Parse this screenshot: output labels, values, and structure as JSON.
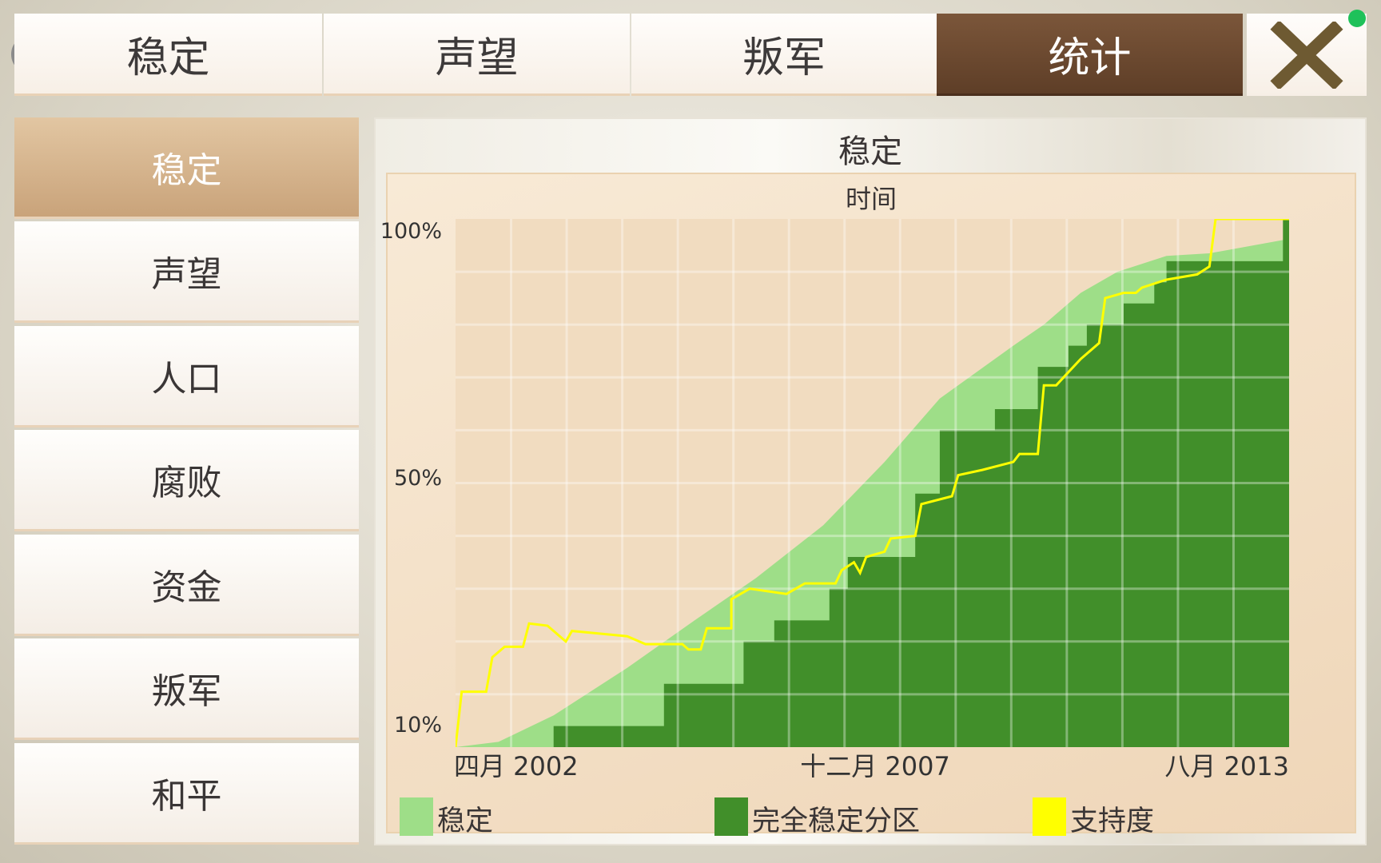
{
  "top_tabs": [
    {
      "label": "稳定"
    },
    {
      "label": "声望"
    },
    {
      "label": "叛军"
    },
    {
      "label": "统计",
      "active": true
    }
  ],
  "icons": {
    "menu": "circle-icon",
    "close": "close-x-icon",
    "mic": "mic-indicator-icon"
  },
  "sidebar": {
    "items": [
      {
        "label": "稳定",
        "active": true
      },
      {
        "label": "声望"
      },
      {
        "label": "人口"
      },
      {
        "label": "腐败"
      },
      {
        "label": "资金"
      },
      {
        "label": "叛军"
      },
      {
        "label": "和平"
      }
    ]
  },
  "colors": {
    "active_tab": "#6b4630",
    "close": "#6e5a32",
    "stable": "#9ede88",
    "fully_stable": "#418f2a",
    "support": "#ffff00",
    "plot_bg": "#f1dcc0"
  },
  "chart_data": {
    "type": "area",
    "title": "稳定",
    "xlabel": "时间",
    "xlim": [
      "2002-04",
      "2013-08"
    ],
    "xticks": [
      "四月 2002",
      "十二月 2007",
      "八月 2013"
    ],
    "ylim": [
      0,
      100
    ],
    "yticks": [
      "100%",
      "50%",
      "10%"
    ],
    "grid": true,
    "legend_placement": "bottom",
    "series": [
      {
        "name": "稳定",
        "color": "#9ede88",
        "points": [
          [
            "2002-04",
            0
          ],
          [
            "2002-11",
            1
          ],
          [
            "2003-08",
            6
          ],
          [
            "2004-08",
            15
          ],
          [
            "2005-07",
            24
          ],
          [
            "2006-05",
            32
          ],
          [
            "2007-04",
            42
          ],
          [
            "2008-02",
            54
          ],
          [
            "2008-11",
            66
          ],
          [
            "2009-11",
            76
          ],
          [
            "2010-04",
            80
          ],
          [
            "2010-10",
            86
          ],
          [
            "2011-04",
            90
          ],
          [
            "2011-12",
            93
          ],
          [
            "2012-07",
            93.5
          ],
          [
            "2013-07",
            96
          ],
          [
            "2013-08",
            100
          ]
        ]
      },
      {
        "name": "完全稳定分区",
        "color": "#418f2a",
        "step": true,
        "points": [
          [
            "2002-04",
            0
          ],
          [
            "2003-08",
            4
          ],
          [
            "2005-02",
            12
          ],
          [
            "2006-03",
            20
          ],
          [
            "2006-08",
            24
          ],
          [
            "2007-05",
            30
          ],
          [
            "2007-08",
            36
          ],
          [
            "2008-07",
            48
          ],
          [
            "2008-11",
            60
          ],
          [
            "2009-08",
            64
          ],
          [
            "2010-03",
            72
          ],
          [
            "2010-08",
            76
          ],
          [
            "2010-11",
            80
          ],
          [
            "2011-05",
            84
          ],
          [
            "2011-10",
            88
          ],
          [
            "2011-12",
            92
          ],
          [
            "2013-07",
            100
          ],
          [
            "2013-08",
            100
          ]
        ]
      },
      {
        "name": "支持度",
        "color": "#ffff00",
        "line": true,
        "points": [
          [
            "2002-04",
            0
          ],
          [
            "2002-05",
            10.5
          ],
          [
            "2002-09",
            10.5
          ],
          [
            "2002-10",
            17
          ],
          [
            "2002-12",
            19
          ],
          [
            "2003-03",
            19
          ],
          [
            "2003-04",
            23.4
          ],
          [
            "2003-07",
            23
          ],
          [
            "2003-10",
            20
          ],
          [
            "2003-11",
            22
          ],
          [
            "2004-08",
            21
          ],
          [
            "2004-11",
            19.5
          ],
          [
            "2005-05",
            19.5
          ],
          [
            "2005-06",
            18.5
          ],
          [
            "2005-08",
            18.5
          ],
          [
            "2005-09",
            22.5
          ],
          [
            "2006-01",
            22.5
          ],
          [
            "2006-01",
            28
          ],
          [
            "2006-04",
            30
          ],
          [
            "2006-10",
            29
          ],
          [
            "2007-01",
            31
          ],
          [
            "2007-06",
            31
          ],
          [
            "2007-07",
            33.5
          ],
          [
            "2007-09",
            35
          ],
          [
            "2007-10",
            33
          ],
          [
            "2007-11",
            36
          ],
          [
            "2008-02",
            37
          ],
          [
            "2008-03",
            39.5
          ],
          [
            "2008-07",
            40
          ],
          [
            "2008-08",
            46
          ],
          [
            "2009-01",
            47.5
          ],
          [
            "2009-02",
            51.5
          ],
          [
            "2009-06",
            52.5
          ],
          [
            "2009-11",
            54
          ],
          [
            "2009-12",
            55.5
          ],
          [
            "2010-03",
            55.5
          ],
          [
            "2010-04",
            68.5
          ],
          [
            "2010-06",
            68.5
          ],
          [
            "2010-08",
            71
          ],
          [
            "2010-10",
            73.5
          ],
          [
            "2011-01",
            76.5
          ],
          [
            "2011-02",
            85
          ],
          [
            "2011-05",
            86
          ],
          [
            "2011-07",
            86
          ],
          [
            "2011-08",
            87
          ],
          [
            "2011-12",
            88.5
          ],
          [
            "2012-05",
            89.5
          ],
          [
            "2012-07",
            91
          ],
          [
            "2012-08",
            100
          ],
          [
            "2013-08",
            100
          ]
        ]
      }
    ]
  }
}
